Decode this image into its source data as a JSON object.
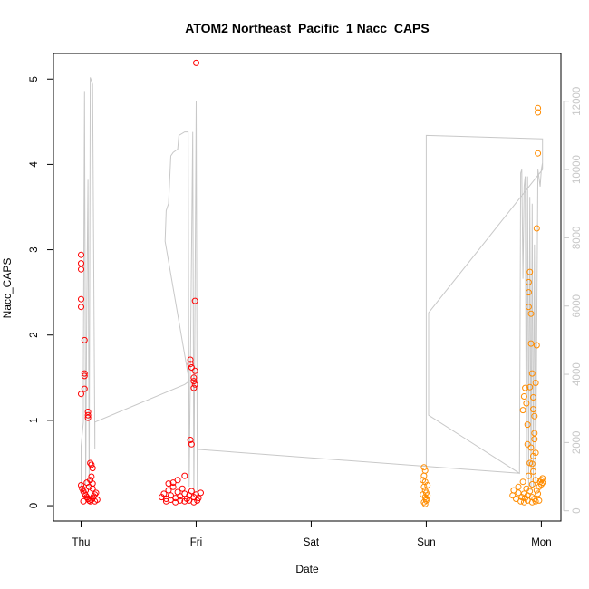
{
  "chart_data": {
    "type": "scatter",
    "title": "ATOM2 Northeast_Pacific_1 Nacc_CAPS",
    "xlabel": "Date",
    "ylabel": "Nacc_CAPS",
    "x_tick_labels": [
      "Thu",
      "Fri",
      "Sat",
      "Sun",
      "Mon"
    ],
    "x_tick_days": [
      0,
      1,
      2,
      3,
      4
    ],
    "xlim_days": [
      -0.24,
      4.17
    ],
    "ylim": [
      -0.18,
      5.3
    ],
    "y_ticks": [
      0,
      1,
      2,
      3,
      4,
      5
    ],
    "y2lim": [
      -300,
      13400
    ],
    "y2_ticks": [
      0,
      2000,
      4000,
      6000,
      8000,
      10000,
      12000
    ],
    "grid": false,
    "legend": "none",
    "colors": {
      "red_points": "#ff0000",
      "orange_points": "#ff8c00",
      "secondary_line": "#c8c8c8",
      "axis": "#000000",
      "axis_right": "#c8c8c8"
    },
    "series_red": [
      [
        -0.0,
        2.94
      ],
      [
        -0.0,
        2.84
      ],
      [
        -0.0,
        2.77
      ],
      [
        -0.0,
        2.42
      ],
      [
        -0.0,
        2.33
      ],
      [
        -0.0,
        1.31
      ],
      [
        0.03,
        1.94
      ],
      [
        0.03,
        1.55
      ],
      [
        0.03,
        1.52
      ],
      [
        0.03,
        1.37
      ],
      [
        0.06,
        1.1
      ],
      [
        0.06,
        1.06
      ],
      [
        0.06,
        1.03
      ],
      [
        0.08,
        0.5
      ],
      [
        0.09,
        0.48
      ],
      [
        0.1,
        0.44
      ],
      [
        0.09,
        0.34
      ],
      [
        0.08,
        0.3
      ],
      [
        0.1,
        0.26
      ],
      [
        0.0,
        0.24
      ],
      [
        0.01,
        0.2
      ],
      [
        0.02,
        0.17
      ],
      [
        0.03,
        0.14
      ],
      [
        0.04,
        0.12
      ],
      [
        0.05,
        0.1
      ],
      [
        0.06,
        0.08
      ],
      [
        0.07,
        0.06
      ],
      [
        0.08,
        0.05
      ],
      [
        0.09,
        0.07
      ],
      [
        0.1,
        0.09
      ],
      [
        0.11,
        0.11
      ],
      [
        0.12,
        0.13
      ],
      [
        0.13,
        0.15
      ],
      [
        0.14,
        0.07
      ],
      [
        0.02,
        0.05
      ],
      [
        0.04,
        0.18
      ],
      [
        0.1,
        0.2
      ],
      [
        0.12,
        0.05
      ],
      [
        0.07,
        0.22
      ],
      [
        0.05,
        0.27
      ],
      [
        0.7,
        0.1
      ],
      [
        0.72,
        0.14
      ],
      [
        0.74,
        0.08
      ],
      [
        0.76,
        0.18
      ],
      [
        0.78,
        0.12
      ],
      [
        0.8,
        0.27
      ],
      [
        0.8,
        0.22
      ],
      [
        0.82,
        0.09
      ],
      [
        0.84,
        0.16
      ],
      [
        0.86,
        0.11
      ],
      [
        0.88,
        0.2
      ],
      [
        0.9,
        0.35
      ],
      [
        0.9,
        0.14
      ],
      [
        0.92,
        0.08
      ],
      [
        0.94,
        0.12
      ],
      [
        0.96,
        0.17
      ],
      [
        0.98,
        0.1
      ],
      [
        1.0,
        0.13
      ],
      [
        1.02,
        0.09
      ],
      [
        1.04,
        0.15
      ],
      [
        0.74,
        0.05
      ],
      [
        0.78,
        0.07
      ],
      [
        0.82,
        0.04
      ],
      [
        0.86,
        0.06
      ],
      [
        0.9,
        0.05
      ],
      [
        0.94,
        0.06
      ],
      [
        0.98,
        0.04
      ],
      [
        1.01,
        0.06
      ],
      [
        0.76,
        0.26
      ],
      [
        0.84,
        0.3
      ],
      [
        0.95,
        1.71
      ],
      [
        0.95,
        1.66
      ],
      [
        0.96,
        1.62
      ],
      [
        0.95,
        0.77
      ],
      [
        0.96,
        0.72
      ],
      [
        0.99,
        1.58
      ],
      [
        0.98,
        1.5
      ],
      [
        0.98,
        1.46
      ],
      [
        0.99,
        1.42
      ],
      [
        0.98,
        1.38
      ],
      [
        0.99,
        2.4
      ],
      [
        1.0,
        5.19
      ]
    ],
    "series_orange": [
      [
        2.98,
        0.45
      ],
      [
        2.99,
        0.41
      ],
      [
        2.98,
        0.35
      ],
      [
        2.99,
        0.28
      ],
      [
        2.98,
        0.22
      ],
      [
        2.99,
        0.18
      ],
      [
        2.97,
        0.13
      ],
      [
        2.99,
        0.1
      ],
      [
        3.0,
        0.08
      ],
      [
        2.98,
        0.04
      ],
      [
        2.99,
        0.02
      ],
      [
        3.0,
        0.06
      ],
      [
        3.01,
        0.12
      ],
      [
        3.0,
        0.15
      ],
      [
        2.97,
        0.3
      ],
      [
        3.01,
        0.24
      ],
      [
        3.75,
        0.12
      ],
      [
        3.76,
        0.18
      ],
      [
        3.78,
        0.08
      ],
      [
        3.8,
        0.22
      ],
      [
        3.8,
        0.15
      ],
      [
        3.82,
        0.05
      ],
      [
        3.83,
        0.1
      ],
      [
        3.84,
        0.28
      ],
      [
        3.85,
        0.14
      ],
      [
        3.86,
        0.09
      ],
      [
        3.87,
        0.2
      ],
      [
        3.88,
        0.12
      ],
      [
        3.89,
        0.35
      ],
      [
        3.9,
        0.5
      ],
      [
        3.9,
        0.17
      ],
      [
        3.91,
        0.68
      ],
      [
        3.92,
        0.1
      ],
      [
        3.92,
        0.25
      ],
      [
        3.93,
        0.4
      ],
      [
        3.94,
        0.08
      ],
      [
        3.95,
        0.3
      ],
      [
        3.96,
        0.18
      ],
      [
        3.97,
        0.14
      ],
      [
        3.98,
        0.22
      ],
      [
        3.99,
        0.28
      ],
      [
        4.0,
        0.3
      ],
      [
        4.0,
        0.25
      ],
      [
        4.01,
        0.32
      ],
      [
        4.01,
        0.27
      ],
      [
        3.95,
        0.05
      ],
      [
        3.85,
        0.04
      ],
      [
        3.88,
        0.06
      ],
      [
        3.92,
        0.04
      ],
      [
        3.98,
        0.06
      ],
      [
        3.84,
        1.12
      ],
      [
        3.85,
        1.28
      ],
      [
        3.86,
        1.38
      ],
      [
        3.87,
        1.2
      ],
      [
        3.88,
        0.95
      ],
      [
        3.88,
        0.72
      ],
      [
        3.89,
        2.33
      ],
      [
        3.89,
        2.5
      ],
      [
        3.89,
        2.62
      ],
      [
        3.9,
        2.74
      ],
      [
        3.9,
        1.39
      ],
      [
        3.91,
        2.25
      ],
      [
        3.91,
        1.9
      ],
      [
        3.92,
        1.55
      ],
      [
        3.93,
        1.27
      ],
      [
        3.93,
        1.13
      ],
      [
        3.94,
        1.05
      ],
      [
        3.94,
        0.85
      ],
      [
        3.95,
        0.62
      ],
      [
        3.95,
        1.44
      ],
      [
        3.96,
        1.88
      ],
      [
        3.96,
        3.25
      ],
      [
        3.97,
        4.13
      ],
      [
        3.97,
        4.61
      ],
      [
        3.97,
        4.66
      ],
      [
        3.94,
        0.78
      ],
      [
        3.93,
        0.58
      ],
      [
        3.92,
        0.49
      ]
    ],
    "secondary_line": [
      [
        -0.0,
        500
      ],
      [
        -0.0,
        1900
      ],
      [
        0.02,
        2600
      ],
      [
        0.02,
        4100
      ],
      [
        0.03,
        12300
      ],
      [
        0.04,
        700
      ],
      [
        0.05,
        6000
      ],
      [
        0.06,
        9700
      ],
      [
        0.07,
        700
      ],
      [
        0.08,
        12700
      ],
      [
        0.1,
        12500
      ],
      [
        0.12,
        1800
      ],
      [
        0.12,
        2600
      ],
      [
        0.9,
        3700
      ],
      [
        0.94,
        3800
      ],
      [
        0.73,
        7900
      ],
      [
        0.74,
        8800
      ],
      [
        0.76,
        9000
      ],
      [
        0.78,
        10400
      ],
      [
        0.8,
        10500
      ],
      [
        0.84,
        10600
      ],
      [
        0.85,
        11000
      ],
      [
        0.9,
        11100
      ],
      [
        0.93,
        11100
      ],
      [
        0.94,
        700
      ],
      [
        0.97,
        11100
      ],
      [
        0.98,
        400
      ],
      [
        1.0,
        12000
      ],
      [
        1.01,
        400
      ],
      [
        1.01,
        1800
      ],
      [
        3.81,
        1100
      ],
      [
        3.0,
        1300
      ],
      [
        3.0,
        10900
      ],
      [
        3.0,
        11000
      ],
      [
        4.01,
        10900
      ],
      [
        4.01,
        10000
      ],
      [
        3.02,
        5800
      ],
      [
        3.02,
        2800
      ],
      [
        3.81,
        1100
      ],
      [
        3.82,
        9900
      ],
      [
        3.83,
        10000
      ],
      [
        3.84,
        6800
      ],
      [
        3.85,
        9500
      ],
      [
        3.86,
        9800
      ],
      [
        3.87,
        1000
      ],
      [
        3.88,
        9800
      ],
      [
        3.89,
        700
      ],
      [
        3.9,
        9200
      ],
      [
        3.91,
        600
      ],
      [
        3.92,
        9000
      ],
      [
        3.93,
        700
      ],
      [
        3.94,
        7800
      ],
      [
        3.95,
        700
      ],
      [
        3.97,
        10000
      ],
      [
        3.99,
        9500
      ],
      [
        4.0,
        10000
      ],
      [
        4.01,
        10200
      ]
    ]
  }
}
